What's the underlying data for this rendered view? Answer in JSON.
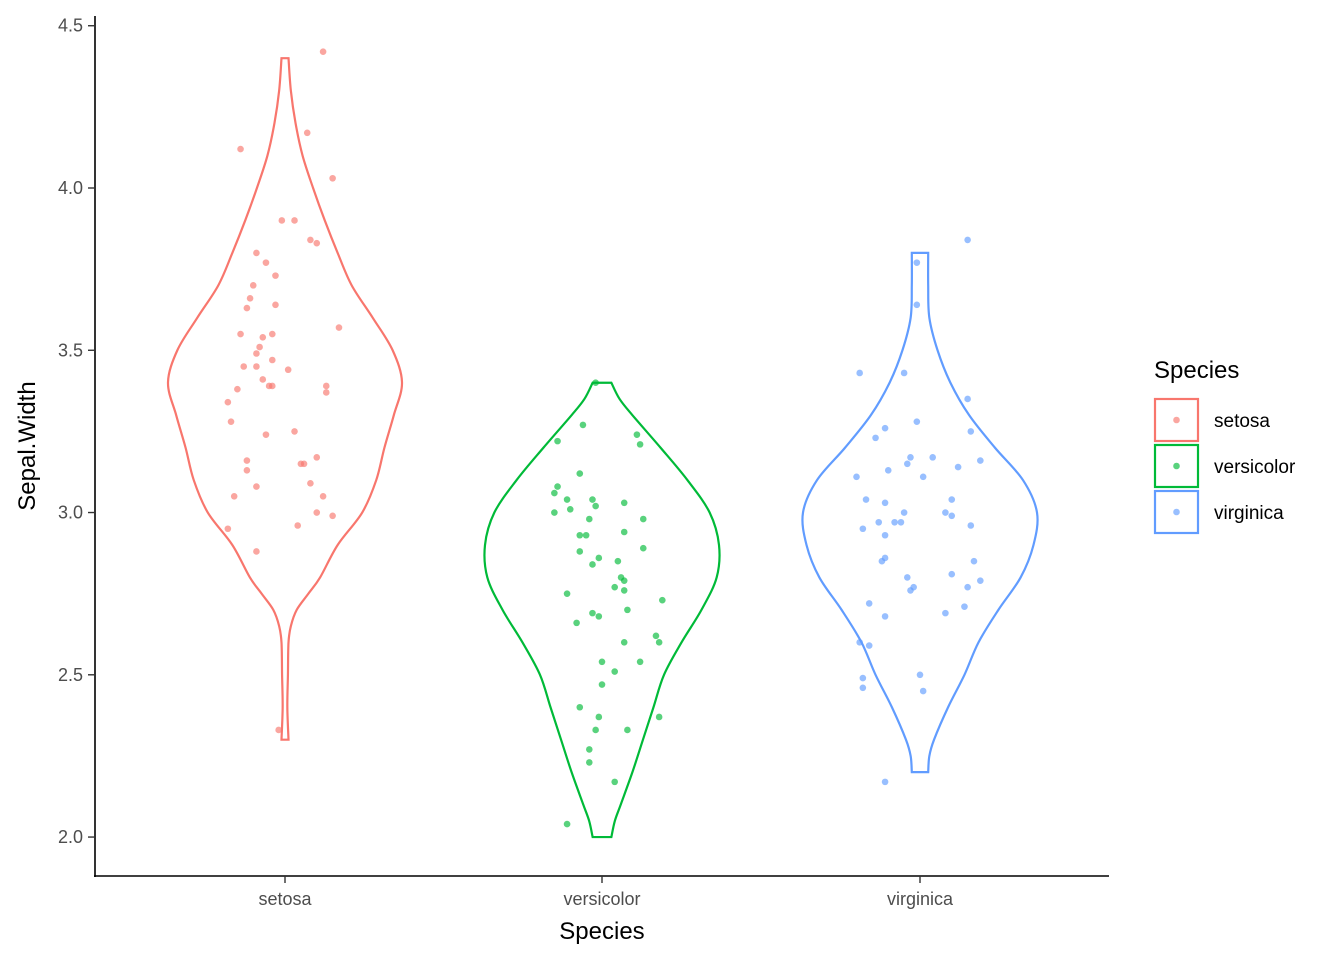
{
  "chart_data": {
    "type": "violin",
    "title": "",
    "xlabel": "Species",
    "ylabel": "Sepal.Width",
    "categories": [
      "setosa",
      "versicolor",
      "virginica"
    ],
    "ylim": [
      1.88,
      4.53
    ],
    "yticks": [
      2.0,
      2.5,
      3.0,
      3.5,
      4.0,
      4.5
    ],
    "ytick_labels": [
      "2.0",
      "2.5",
      "3.0",
      "3.5",
      "4.0",
      "4.5"
    ],
    "grid": false,
    "legend": {
      "title": "Species",
      "placement": "right",
      "entries": [
        "setosa",
        "versicolor",
        "virginica"
      ]
    },
    "colors": {
      "setosa": "#F8766D",
      "versicolor": "#00BA38",
      "virginica": "#619CFF"
    },
    "series": [
      {
        "name": "setosa",
        "min": 2.3,
        "max": 4.4,
        "density_profile": [
          [
            2.3,
            0.03
          ],
          [
            2.4,
            0.02
          ],
          [
            2.5,
            0.025
          ],
          [
            2.6,
            0.03
          ],
          [
            2.65,
            0.05
          ],
          [
            2.7,
            0.1
          ],
          [
            2.75,
            0.2
          ],
          [
            2.8,
            0.3
          ],
          [
            2.9,
            0.45
          ],
          [
            3.0,
            0.66
          ],
          [
            3.1,
            0.78
          ],
          [
            3.2,
            0.85
          ],
          [
            3.3,
            0.93
          ],
          [
            3.4,
            1.0
          ],
          [
            3.5,
            0.92
          ],
          [
            3.6,
            0.75
          ],
          [
            3.7,
            0.57
          ],
          [
            3.8,
            0.45
          ],
          [
            3.9,
            0.34
          ],
          [
            4.0,
            0.24
          ],
          [
            4.1,
            0.15
          ],
          [
            4.2,
            0.09
          ],
          [
            4.3,
            0.05
          ],
          [
            4.4,
            0.03
          ]
        ],
        "points": [
          {
            "x": -0.14,
            "y": 4.12
          },
          {
            "x": 0.12,
            "y": 4.42
          },
          {
            "x": 0.07,
            "y": 4.17
          },
          {
            "x": 0.15,
            "y": 4.03
          },
          {
            "x": -0.01,
            "y": 3.9
          },
          {
            "x": 0.03,
            "y": 3.9
          },
          {
            "x": 0.08,
            "y": 3.84
          },
          {
            "x": 0.1,
            "y": 3.83
          },
          {
            "x": -0.09,
            "y": 3.8
          },
          {
            "x": -0.06,
            "y": 3.77
          },
          {
            "x": -0.03,
            "y": 3.73
          },
          {
            "x": -0.1,
            "y": 3.7
          },
          {
            "x": -0.11,
            "y": 3.66
          },
          {
            "x": -0.03,
            "y": 3.64
          },
          {
            "x": -0.12,
            "y": 3.63
          },
          {
            "x": 0.17,
            "y": 3.57
          },
          {
            "x": -0.14,
            "y": 3.55
          },
          {
            "x": -0.04,
            "y": 3.55
          },
          {
            "x": -0.07,
            "y": 3.54
          },
          {
            "x": -0.08,
            "y": 3.51
          },
          {
            "x": -0.09,
            "y": 3.49
          },
          {
            "x": -0.04,
            "y": 3.47
          },
          {
            "x": -0.13,
            "y": 3.45
          },
          {
            "x": -0.09,
            "y": 3.45
          },
          {
            "x": 0.01,
            "y": 3.44
          },
          {
            "x": -0.07,
            "y": 3.41
          },
          {
            "x": -0.05,
            "y": 3.39
          },
          {
            "x": -0.04,
            "y": 3.39
          },
          {
            "x": 0.13,
            "y": 3.39
          },
          {
            "x": -0.15,
            "y": 3.38
          },
          {
            "x": 0.13,
            "y": 3.37
          },
          {
            "x": -0.18,
            "y": 3.34
          },
          {
            "x": -0.17,
            "y": 3.28
          },
          {
            "x": 0.03,
            "y": 3.25
          },
          {
            "x": -0.06,
            "y": 3.24
          },
          {
            "x": 0.1,
            "y": 3.17
          },
          {
            "x": -0.12,
            "y": 3.16
          },
          {
            "x": 0.06,
            "y": 3.15
          },
          {
            "x": 0.05,
            "y": 3.15
          },
          {
            "x": -0.12,
            "y": 3.13
          },
          {
            "x": 0.08,
            "y": 3.09
          },
          {
            "x": -0.09,
            "y": 3.08
          },
          {
            "x": -0.16,
            "y": 3.05
          },
          {
            "x": 0.12,
            "y": 3.05
          },
          {
            "x": 0.1,
            "y": 3.0
          },
          {
            "x": 0.15,
            "y": 2.99
          },
          {
            "x": 0.04,
            "y": 2.96
          },
          {
            "x": -0.18,
            "y": 2.95
          },
          {
            "x": -0.09,
            "y": 2.88
          },
          {
            "x": -0.02,
            "y": 2.33
          }
        ]
      },
      {
        "name": "versicolor",
        "min": 2.0,
        "max": 3.4,
        "density_profile": [
          [
            2.0,
            0.08
          ],
          [
            2.05,
            0.11
          ],
          [
            2.1,
            0.16
          ],
          [
            2.2,
            0.26
          ],
          [
            2.3,
            0.35
          ],
          [
            2.4,
            0.44
          ],
          [
            2.5,
            0.53
          ],
          [
            2.6,
            0.68
          ],
          [
            2.7,
            0.85
          ],
          [
            2.8,
            0.98
          ],
          [
            2.9,
            1.0
          ],
          [
            3.0,
            0.92
          ],
          [
            3.1,
            0.73
          ],
          [
            3.2,
            0.5
          ],
          [
            3.3,
            0.26
          ],
          [
            3.35,
            0.15
          ],
          [
            3.4,
            0.08
          ]
        ],
        "points": [
          {
            "x": -0.02,
            "y": 3.4
          },
          {
            "x": -0.14,
            "y": 3.22
          },
          {
            "x": -0.06,
            "y": 3.27
          },
          {
            "x": 0.11,
            "y": 3.24
          },
          {
            "x": 0.12,
            "y": 3.21
          },
          {
            "x": -0.07,
            "y": 3.12
          },
          {
            "x": -0.14,
            "y": 3.08
          },
          {
            "x": -0.15,
            "y": 3.06
          },
          {
            "x": -0.11,
            "y": 3.04
          },
          {
            "x": -0.03,
            "y": 3.04
          },
          {
            "x": 0.07,
            "y": 3.03
          },
          {
            "x": -0.1,
            "y": 3.01
          },
          {
            "x": -0.15,
            "y": 3.0
          },
          {
            "x": -0.02,
            "y": 3.02
          },
          {
            "x": -0.04,
            "y": 2.98
          },
          {
            "x": 0.13,
            "y": 2.98
          },
          {
            "x": 0.07,
            "y": 2.94
          },
          {
            "x": -0.07,
            "y": 2.93
          },
          {
            "x": -0.05,
            "y": 2.93
          },
          {
            "x": 0.13,
            "y": 2.89
          },
          {
            "x": -0.07,
            "y": 2.88
          },
          {
            "x": -0.01,
            "y": 2.86
          },
          {
            "x": 0.05,
            "y": 2.85
          },
          {
            "x": -0.03,
            "y": 2.84
          },
          {
            "x": 0.06,
            "y": 2.8
          },
          {
            "x": 0.07,
            "y": 2.79
          },
          {
            "x": 0.04,
            "y": 2.77
          },
          {
            "x": 0.07,
            "y": 2.76
          },
          {
            "x": -0.11,
            "y": 2.75
          },
          {
            "x": 0.19,
            "y": 2.73
          },
          {
            "x": 0.08,
            "y": 2.7
          },
          {
            "x": -0.03,
            "y": 2.69
          },
          {
            "x": -0.01,
            "y": 2.68
          },
          {
            "x": -0.08,
            "y": 2.66
          },
          {
            "x": 0.17,
            "y": 2.62
          },
          {
            "x": 0.18,
            "y": 2.6
          },
          {
            "x": 0.07,
            "y": 2.6
          },
          {
            "x": 0.12,
            "y": 2.54
          },
          {
            "x": 0.0,
            "y": 2.54
          },
          {
            "x": 0.04,
            "y": 2.51
          },
          {
            "x": 0.0,
            "y": 2.47
          },
          {
            "x": -0.07,
            "y": 2.4
          },
          {
            "x": -0.01,
            "y": 2.37
          },
          {
            "x": 0.18,
            "y": 2.37
          },
          {
            "x": -0.02,
            "y": 2.33
          },
          {
            "x": 0.08,
            "y": 2.33
          },
          {
            "x": -0.04,
            "y": 2.27
          },
          {
            "x": -0.04,
            "y": 2.23
          },
          {
            "x": 0.04,
            "y": 2.17
          },
          {
            "x": -0.11,
            "y": 2.04
          }
        ]
      },
      {
        "name": "virginica",
        "min": 2.2,
        "max": 3.8,
        "density_profile": [
          [
            2.2,
            0.07
          ],
          [
            2.25,
            0.08
          ],
          [
            2.3,
            0.12
          ],
          [
            2.4,
            0.24
          ],
          [
            2.5,
            0.38
          ],
          [
            2.6,
            0.5
          ],
          [
            2.7,
            0.67
          ],
          [
            2.8,
            0.86
          ],
          [
            2.9,
            0.97
          ],
          [
            3.0,
            1.0
          ],
          [
            3.1,
            0.88
          ],
          [
            3.2,
            0.64
          ],
          [
            3.3,
            0.42
          ],
          [
            3.4,
            0.26
          ],
          [
            3.5,
            0.15
          ],
          [
            3.6,
            0.08
          ],
          [
            3.7,
            0.07
          ],
          [
            3.8,
            0.07
          ]
        ],
        "points": [
          {
            "x": 0.15,
            "y": 3.84
          },
          {
            "x": -0.01,
            "y": 3.77
          },
          {
            "x": -0.01,
            "y": 3.64
          },
          {
            "x": -0.19,
            "y": 3.43
          },
          {
            "x": -0.05,
            "y": 3.43
          },
          {
            "x": 0.15,
            "y": 3.35
          },
          {
            "x": -0.01,
            "y": 3.28
          },
          {
            "x": -0.11,
            "y": 3.26
          },
          {
            "x": 0.16,
            "y": 3.25
          },
          {
            "x": -0.14,
            "y": 3.23
          },
          {
            "x": -0.03,
            "y": 3.17
          },
          {
            "x": 0.04,
            "y": 3.17
          },
          {
            "x": 0.19,
            "y": 3.16
          },
          {
            "x": -0.04,
            "y": 3.15
          },
          {
            "x": 0.12,
            "y": 3.14
          },
          {
            "x": -0.1,
            "y": 3.13
          },
          {
            "x": -0.2,
            "y": 3.11
          },
          {
            "x": 0.01,
            "y": 3.11
          },
          {
            "x": -0.17,
            "y": 3.04
          },
          {
            "x": -0.11,
            "y": 3.03
          },
          {
            "x": 0.1,
            "y": 3.04
          },
          {
            "x": -0.05,
            "y": 3.0
          },
          {
            "x": 0.08,
            "y": 3.0
          },
          {
            "x": 0.1,
            "y": 2.99
          },
          {
            "x": -0.13,
            "y": 2.97
          },
          {
            "x": -0.06,
            "y": 2.97
          },
          {
            "x": -0.08,
            "y": 2.97
          },
          {
            "x": 0.16,
            "y": 2.96
          },
          {
            "x": -0.18,
            "y": 2.95
          },
          {
            "x": -0.11,
            "y": 2.93
          },
          {
            "x": -0.11,
            "y": 2.86
          },
          {
            "x": -0.12,
            "y": 2.85
          },
          {
            "x": 0.17,
            "y": 2.85
          },
          {
            "x": -0.04,
            "y": 2.8
          },
          {
            "x": 0.1,
            "y": 2.81
          },
          {
            "x": 0.19,
            "y": 2.79
          },
          {
            "x": 0.15,
            "y": 2.77
          },
          {
            "x": -0.03,
            "y": 2.76
          },
          {
            "x": -0.02,
            "y": 2.77
          },
          {
            "x": -0.16,
            "y": 2.72
          },
          {
            "x": 0.14,
            "y": 2.71
          },
          {
            "x": 0.08,
            "y": 2.69
          },
          {
            "x": -0.11,
            "y": 2.68
          },
          {
            "x": -0.19,
            "y": 2.6
          },
          {
            "x": -0.16,
            "y": 2.59
          },
          {
            "x": -0.18,
            "y": 2.49
          },
          {
            "x": 0.0,
            "y": 2.5
          },
          {
            "x": -0.18,
            "y": 2.46
          },
          {
            "x": 0.01,
            "y": 2.45
          },
          {
            "x": -0.11,
            "y": 2.17
          }
        ]
      }
    ]
  }
}
